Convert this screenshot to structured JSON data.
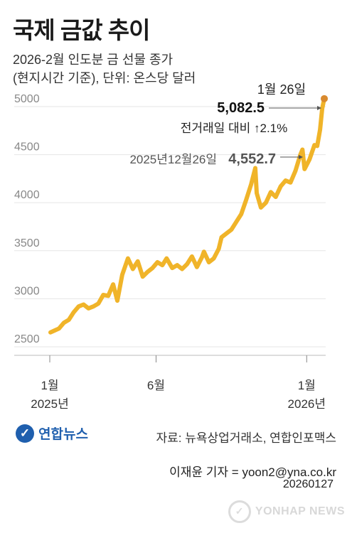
{
  "header": {
    "title": "국제 금값 추이",
    "subtitle_line1": "2026-2월 인도분 금 선물 종가",
    "subtitle_line2": "(현지시간 기준), 단위: 온스당 달러"
  },
  "annotations": {
    "latest_date": "1월 26일",
    "latest_value": "5,082.5",
    "latest_change": "전거래일 대비 ↑2.1%",
    "prev_label": "2025년12월26일",
    "prev_value": "4,552.7"
  },
  "footer": {
    "logo_text": "연합뉴스",
    "source": "자료: 뉴욕상업거래소, 연합인포맥스",
    "credit": "이재윤 기자 = yoon2@yna.co.kr",
    "date": "20260127",
    "watermark": "YONHAP NEWS"
  },
  "colors": {
    "line": "#f0b429",
    "marker": "#d98a2e",
    "grid": "#e6e6e6",
    "axis_text": "#888888",
    "logo": "#1f5fae"
  },
  "chart_data": {
    "type": "line",
    "title": "국제 금값 추이",
    "ylim": [
      2500,
      5100
    ],
    "yticks": [
      2500,
      3000,
      3500,
      4000,
      4500,
      5000
    ],
    "grid": true,
    "xlim": [
      "2025-01-01",
      "2026-01-28"
    ],
    "xticks": [
      {
        "date": "2025-01-01",
        "label": "1월",
        "sublabel": "2025년"
      },
      {
        "date": "2025-06-01",
        "label": "6월",
        "sublabel": ""
      },
      {
        "date": "2026-01-01",
        "label": "1월",
        "sublabel": "2026년"
      }
    ],
    "series": [
      {
        "name": "",
        "points": [
          [
            "2025-01-02",
            2650
          ],
          [
            "2025-01-08",
            2670
          ],
          [
            "2025-01-14",
            2690
          ],
          [
            "2025-01-21",
            2750
          ],
          [
            "2025-01-28",
            2780
          ],
          [
            "2025-02-04",
            2860
          ],
          [
            "2025-02-11",
            2920
          ],
          [
            "2025-02-18",
            2940
          ],
          [
            "2025-02-25",
            2900
          ],
          [
            "2025-03-04",
            2920
          ],
          [
            "2025-03-11",
            2950
          ],
          [
            "2025-03-18",
            3040
          ],
          [
            "2025-03-25",
            3030
          ],
          [
            "2025-04-01",
            3150
          ],
          [
            "2025-04-07",
            2980
          ],
          [
            "2025-04-14",
            3250
          ],
          [
            "2025-04-22",
            3420
          ],
          [
            "2025-04-29",
            3310
          ],
          [
            "2025-05-06",
            3390
          ],
          [
            "2025-05-13",
            3230
          ],
          [
            "2025-05-20",
            3280
          ],
          [
            "2025-05-27",
            3320
          ],
          [
            "2025-06-03",
            3380
          ],
          [
            "2025-06-10",
            3350
          ],
          [
            "2025-06-16",
            3420
          ],
          [
            "2025-06-24",
            3320
          ],
          [
            "2025-07-01",
            3350
          ],
          [
            "2025-07-08",
            3310
          ],
          [
            "2025-07-15",
            3360
          ],
          [
            "2025-07-22",
            3440
          ],
          [
            "2025-07-29",
            3330
          ],
          [
            "2025-08-05",
            3430
          ],
          [
            "2025-08-08",
            3490
          ],
          [
            "2025-08-15",
            3380
          ],
          [
            "2025-08-22",
            3420
          ],
          [
            "2025-08-29",
            3520
          ],
          [
            "2025-09-02",
            3640
          ],
          [
            "2025-09-09",
            3680
          ],
          [
            "2025-09-16",
            3720
          ],
          [
            "2025-09-23",
            3800
          ],
          [
            "2025-09-30",
            3880
          ],
          [
            "2025-10-07",
            4030
          ],
          [
            "2025-10-14",
            4190
          ],
          [
            "2025-10-20",
            4360
          ],
          [
            "2025-10-22",
            4100
          ],
          [
            "2025-10-28",
            3950
          ],
          [
            "2025-11-04",
            4000
          ],
          [
            "2025-11-11",
            4110
          ],
          [
            "2025-11-18",
            4060
          ],
          [
            "2025-11-25",
            4170
          ],
          [
            "2025-12-02",
            4230
          ],
          [
            "2025-12-09",
            4210
          ],
          [
            "2025-12-16",
            4330
          ],
          [
            "2025-12-23",
            4500
          ],
          [
            "2025-12-26",
            4552.7
          ],
          [
            "2025-12-29",
            4350
          ],
          [
            "2026-01-05",
            4450
          ],
          [
            "2026-01-12",
            4600
          ],
          [
            "2026-01-16",
            4590
          ],
          [
            "2026-01-20",
            4760
          ],
          [
            "2026-01-23",
            4980
          ],
          [
            "2026-01-26",
            5082.5
          ]
        ]
      }
    ]
  }
}
